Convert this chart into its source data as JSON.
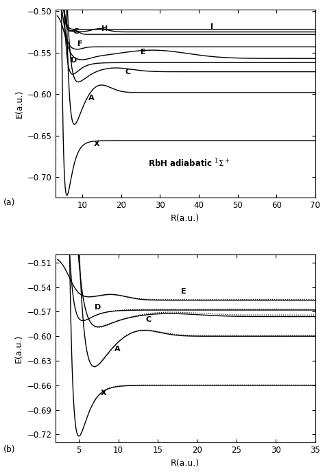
{
  "panel_a": {
    "xlim": [
      3,
      70
    ],
    "ylim": [
      -0.725,
      -0.498
    ],
    "xticks": [
      10,
      20,
      30,
      40,
      50,
      60,
      70
    ],
    "yticks": [
      -0.7,
      -0.65,
      -0.6,
      -0.55,
      -0.5
    ],
    "xlabel": "R(a.u.)",
    "ylabel": "E(a.u.)"
  },
  "panel_b": {
    "xlim": [
      2,
      35
    ],
    "ylim": [
      -0.73,
      -0.5
    ],
    "xticks": [
      5,
      10,
      15,
      20,
      25,
      30,
      35
    ],
    "yticks": [
      -0.72,
      -0.69,
      -0.66,
      -0.63,
      -0.6,
      -0.57,
      -0.54,
      -0.51
    ],
    "xlabel": "R(a.u.)",
    "ylabel": "E(a.u.)"
  },
  "line_width": 1.0
}
